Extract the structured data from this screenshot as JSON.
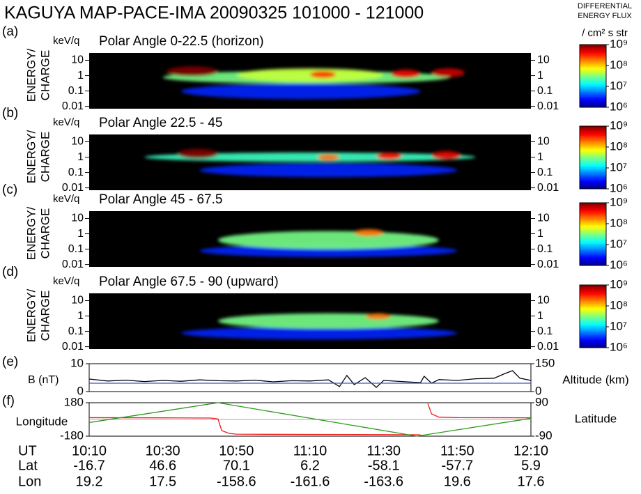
{
  "title": "KAGUYA MAP-PACE-IMA  20090325   101000 - 121000",
  "colorbar_header": [
    "DIFFERENTIAL",
    "ENERGY FLUX"
  ],
  "colorbar_unit": "/ cm² s str",
  "chart_data": [
    {
      "type": "spectrogram",
      "label": "(a)",
      "unit": "keV/q",
      "title": "Polar Angle 0-22.5 (horizon)",
      "ylabel": [
        "ENERGY/",
        "CHARGE"
      ],
      "log": true,
      "xlim": [
        "10:10",
        "12:10"
      ],
      "ylim": [
        0.007,
        30
      ],
      "yticks": [
        10,
        1,
        0.1,
        0.01
      ],
      "clim": [
        1000000,
        1000000000
      ],
      "cticks": [
        {
          "value": 1000000000,
          "label": "10⁹"
        },
        {
          "value": 100000000,
          "label": "10⁸"
        },
        {
          "value": 10000000,
          "label": "10⁷"
        },
        {
          "value": 1000000,
          "label": "10⁶"
        }
      ],
      "patches": [
        {
          "x": [
            "10:35",
            "11:40"
          ],
          "y": [
            0.03,
            0.3
          ],
          "flux": 3000000
        },
        {
          "x": [
            "10:30",
            "11:48"
          ],
          "y": [
            0.3,
            2
          ],
          "flux": 30000000
        },
        {
          "x": [
            "10:50",
            "11:30"
          ],
          "y": [
            0.4,
            3
          ],
          "flux": 50000000
        },
        {
          "x": [
            "11:10",
            "11:17"
          ],
          "y": [
            0.7,
            2
          ],
          "flux": 300000000
        },
        {
          "x": [
            "11:32",
            "11:40"
          ],
          "y": [
            0.7,
            2.5
          ],
          "flux": 500000000
        },
        {
          "x": [
            "11:43",
            "11:52"
          ],
          "y": [
            0.8,
            3
          ],
          "flux": 600000000
        },
        {
          "x": [
            "10:31",
            "10:45"
          ],
          "y": [
            0.9,
            4
          ],
          "flux": 1000000000
        }
      ]
    },
    {
      "type": "spectrogram",
      "label": "(b)",
      "unit": "keV/q",
      "title": "Polar Angle 22.5 - 45",
      "ylabel": [
        "ENERGY/",
        "CHARGE"
      ],
      "log": true,
      "xlim": [
        "10:10",
        "12:10"
      ],
      "ylim": [
        0.007,
        30
      ],
      "yticks": [
        10,
        1,
        0.1,
        0.01
      ],
      "clim": [
        1000000,
        1000000000
      ],
      "cticks": [
        {
          "value": 1000000000,
          "label": "10⁹"
        },
        {
          "value": 100000000,
          "label": "10⁸"
        },
        {
          "value": 10000000,
          "label": "10⁷"
        },
        {
          "value": 1000000,
          "label": "10⁶"
        }
      ],
      "patches": [
        {
          "x": [
            "10:40",
            "11:50"
          ],
          "y": [
            0.05,
            0.4
          ],
          "flux": 3000000
        },
        {
          "x": [
            "10:25",
            "11:55"
          ],
          "y": [
            0.5,
            2
          ],
          "flux": 20000000
        },
        {
          "x": [
            "11:12",
            "11:18"
          ],
          "y": [
            0.6,
            1.6
          ],
          "flux": 200000000
        },
        {
          "x": [
            "11:28",
            "11:35"
          ],
          "y": [
            0.7,
            2
          ],
          "flux": 400000000
        },
        {
          "x": [
            "11:43",
            "11:51"
          ],
          "y": [
            0.7,
            2.5
          ],
          "flux": 500000000
        },
        {
          "x": [
            "10:34",
            "10:45"
          ],
          "y": [
            0.8,
            3.5
          ],
          "flux": 1000000000
        }
      ]
    },
    {
      "type": "spectrogram",
      "label": "(c)",
      "unit": "keV/q",
      "title": "Polar Angle 45 - 67.5",
      "ylabel": [
        "ENERGY/",
        "CHARGE"
      ],
      "log": true,
      "xlim": [
        "10:10",
        "12:10"
      ],
      "ylim": [
        0.007,
        30
      ],
      "yticks": [
        10,
        1,
        0.1,
        0.01
      ],
      "clim": [
        1000000,
        1000000000
      ],
      "cticks": [
        {
          "value": 1000000000,
          "label": "10⁹"
        },
        {
          "value": 100000000,
          "label": "10⁸"
        },
        {
          "value": 10000000,
          "label": "10⁷"
        },
        {
          "value": 1000000,
          "label": "10⁶"
        }
      ],
      "patches": [
        {
          "x": [
            "10:40",
            "11:50"
          ],
          "y": [
            0.03,
            0.2
          ],
          "flux": 3000000
        },
        {
          "x": [
            "10:45",
            "11:45"
          ],
          "y": [
            0.1,
            1.5
          ],
          "flux": 30000000
        },
        {
          "x": [
            "11:22",
            "11:30"
          ],
          "y": [
            0.7,
            2
          ],
          "flux": 200000000
        }
      ]
    },
    {
      "type": "spectrogram",
      "label": "(d)",
      "unit": "keV/q",
      "title": "Polar Angle 67.5 - 90 (upward)",
      "ylabel": [
        "ENERGY/",
        "CHARGE"
      ],
      "log": true,
      "xlim": [
        "10:10",
        "12:10"
      ],
      "ylim": [
        0.007,
        30
      ],
      "yticks": [
        10,
        1,
        0.1,
        0.01
      ],
      "clim": [
        1000000,
        1000000000
      ],
      "cticks": [
        {
          "value": 1000000000,
          "label": "10⁹"
        },
        {
          "value": 100000000,
          "label": "10⁸"
        },
        {
          "value": 10000000,
          "label": "10⁷"
        },
        {
          "value": 1000000,
          "label": "10⁶"
        }
      ],
      "patches": [
        {
          "x": [
            "10:35",
            "11:50"
          ],
          "y": [
            0.03,
            0.2
          ],
          "flux": 3000000
        },
        {
          "x": [
            "10:45",
            "11:45"
          ],
          "y": [
            0.15,
            1.5
          ],
          "flux": 30000000
        },
        {
          "x": [
            "11:25",
            "11:32"
          ],
          "y": [
            0.6,
            1.5
          ],
          "flux": 200000000
        }
      ]
    },
    {
      "type": "line",
      "label": "(e)",
      "xlim": [
        "10:10",
        "12:10"
      ],
      "ylabel": "B (nT)",
      "ylim": [
        0,
        10
      ],
      "yticks": [
        10,
        0
      ],
      "y2label": "Altitude (km)",
      "y2lim": [
        0,
        150
      ],
      "y2ticks": [
        150,
        0
      ],
      "y2color": "#39b5f0",
      "series": [
        {
          "name": "B (nT)",
          "color": "#000000",
          "x": [
            "10:10",
            "10:15",
            "10:20",
            "10:25",
            "10:30",
            "10:35",
            "10:40",
            "10:45",
            "10:50",
            "10:55",
            "11:00",
            "11:05",
            "11:10",
            "11:15",
            "11:18",
            "11:20",
            "11:22",
            "11:25",
            "11:28",
            "11:30",
            "11:35",
            "11:40",
            "11:41",
            "11:43",
            "11:45",
            "11:50",
            "11:55",
            "12:00",
            "12:03",
            "12:05",
            "12:07",
            "12:10"
          ],
          "values": [
            4.5,
            3.8,
            4.1,
            3.6,
            4.0,
            3.7,
            4.2,
            3.9,
            3.8,
            4.1,
            3.5,
            3.9,
            3.8,
            4.2,
            1.8,
            5.8,
            2.5,
            5.0,
            1.5,
            4.0,
            3.6,
            3.2,
            5.5,
            3.0,
            4.3,
            4.0,
            4.6,
            4.8,
            6.5,
            7.5,
            4.8,
            4.0
          ]
        },
        {
          "name": "Altitude (km)",
          "color": "#3a56c8",
          "axis": "y2",
          "x": [
            "10:10",
            "12:10"
          ],
          "values": [
            45,
            45
          ]
        }
      ]
    },
    {
      "type": "line",
      "label": "(f)",
      "xlim": [
        "10:10",
        "12:10"
      ],
      "ylabel": "Longitude",
      "ylim": [
        -180,
        180
      ],
      "yticks": [
        180,
        -180
      ],
      "ycolor": "#ee1c1c",
      "y2label": "Latitude",
      "y2lim": [
        -90,
        90
      ],
      "y2ticks": [
        90,
        -90
      ],
      "y2color": "#2a9a1a",
      "series": [
        {
          "name": "Longitude",
          "color": "#ee1c1c",
          "x": [
            "10:10",
            "10:30",
            "10:43",
            "10:45",
            "10:46",
            "10:48",
            "10:50",
            "11:10",
            "11:30",
            "11:40",
            "11:41",
            "11:42",
            "11:43",
            "11:45",
            "11:50",
            "12:10"
          ],
          "values": [
            19.2,
            17.5,
            15,
            5,
            -120,
            -150,
            -158.6,
            -161.6,
            -163.6,
            -165,
            null,
            170,
            60,
            25,
            19.6,
            17.6
          ]
        },
        {
          "name": "Latitude",
          "color": "#2a9a1a",
          "axis": "y2",
          "x": [
            "10:10",
            "10:45",
            "11:39",
            "12:10"
          ],
          "values": [
            -16.7,
            90,
            -90,
            5.9
          ]
        }
      ]
    }
  ],
  "footer": {
    "ut_label": "UT",
    "ut": [
      "10:10",
      "10:30",
      "10:50",
      "11:10",
      "11:30",
      "11:50",
      "12:10"
    ],
    "lat_label": "Lat",
    "lat": [
      -16.7,
      46.6,
      70.1,
      6.2,
      -58.1,
      -57.7,
      5.9
    ],
    "lon_label": "Lon",
    "lon": [
      19.2,
      17.5,
      -158.6,
      -161.6,
      -163.6,
      19.6,
      17.6
    ]
  }
}
